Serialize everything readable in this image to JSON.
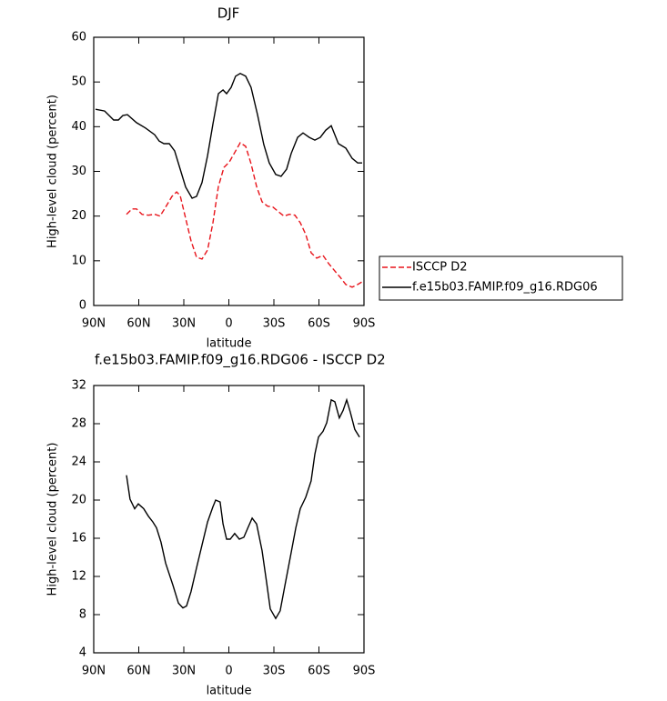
{
  "chart_data": [
    {
      "type": "line",
      "title": "DJF",
      "ylabel": "High-level cloud (percent)",
      "xlabel": "latitude",
      "xlim": [
        90,
        -90
      ],
      "ylim": [
        0,
        60
      ],
      "xticks": [
        {
          "value": 90,
          "label": "90N"
        },
        {
          "value": 60,
          "label": "60N"
        },
        {
          "value": 30,
          "label": "30N"
        },
        0,
        {
          "value": -30,
          "label": "30S"
        },
        {
          "value": -60,
          "label": "60S"
        },
        {
          "value": -90,
          "label": "90S"
        }
      ],
      "yticks": [
        0,
        10,
        20,
        30,
        40,
        50,
        60
      ],
      "legend": "right",
      "series": [
        {
          "name": "ISCCP D2",
          "color": "#e8141b",
          "dash": true,
          "x": [
            68.2,
            64.5,
            61.5,
            57.9,
            53.6,
            49.4,
            45.8,
            42.1,
            37.9,
            34.8,
            32.4,
            28.8,
            25.2,
            21.5,
            17.9,
            14.2,
            10.6,
            7.0,
            3.3,
            -0.3,
            -3.9,
            -7.6,
            -11.2,
            -14.8,
            -18.5,
            -22.1,
            -25.8,
            -29.4,
            -33.0,
            -36.7,
            -40.3,
            -44.0,
            -47.6,
            -51.2,
            -54.8,
            -58.5,
            -62.7,
            -66.4,
            -70.6,
            -74.2,
            -77.9,
            -82.1,
            -85.8,
            -88.8
          ],
          "values": [
            20.4,
            21.6,
            21.6,
            20.4,
            20.2,
            20.4,
            20.0,
            22.0,
            24.4,
            25.4,
            24.6,
            19.5,
            14.5,
            10.8,
            10.4,
            12.4,
            18.5,
            26.6,
            30.9,
            32.1,
            34.2,
            36.4,
            35.6,
            31.7,
            26.6,
            23.2,
            22.2,
            22.0,
            21.0,
            20.0,
            20.4,
            20.2,
            18.5,
            15.9,
            11.8,
            10.6,
            11.2,
            9.4,
            7.7,
            6.3,
            4.7,
            4.1,
            4.7,
            5.3
          ]
        },
        {
          "name": "f.e15b03.FAMIP.f09_g16.RDG06",
          "color": "#000000",
          "dash": false,
          "x": [
            88.8,
            82.7,
            76.7,
            73.6,
            70.6,
            67.6,
            61.5,
            55.5,
            49.4,
            46.4,
            43.3,
            39.7,
            36.1,
            32.4,
            28.8,
            24.5,
            21.5,
            17.9,
            14.2,
            10.6,
            7.0,
            3.9,
            1.5,
            -1.5,
            -4.5,
            -7.6,
            -11.2,
            -14.8,
            -19.1,
            -23.3,
            -26.9,
            -31.2,
            -34.8,
            -38.5,
            -41.5,
            -45.8,
            -49.4,
            -53.6,
            -57.3,
            -60.9,
            -64.5,
            -68.2,
            -73.0,
            -77.9,
            -82.1,
            -85.8,
            -88.8
          ],
          "values": [
            43.9,
            43.5,
            41.5,
            41.5,
            42.5,
            42.7,
            40.9,
            39.7,
            38.2,
            36.8,
            36.2,
            36.2,
            34.6,
            30.5,
            26.5,
            24.0,
            24.4,
            27.5,
            33.5,
            40.6,
            47.4,
            48.2,
            47.4,
            48.8,
            51.3,
            51.9,
            51.3,
            48.8,
            42.7,
            36.0,
            31.9,
            29.3,
            28.9,
            30.5,
            34.0,
            37.6,
            38.6,
            37.6,
            37.0,
            37.6,
            39.2,
            40.2,
            36.2,
            35.2,
            32.9,
            31.9,
            31.9
          ]
        }
      ]
    },
    {
      "type": "line",
      "title": "f.e15b03.FAMIP.f09_g16.RDG06 - ISCCP D2",
      "ylabel": "High-level cloud (percent)",
      "xlabel": "latitude",
      "xlim": [
        90,
        -90
      ],
      "ylim": [
        4,
        32
      ],
      "xticks": [
        {
          "value": 90,
          "label": "90N"
        },
        {
          "value": 60,
          "label": "60N"
        },
        {
          "value": 30,
          "label": "30N"
        },
        0,
        {
          "value": -30,
          "label": "30S"
        },
        {
          "value": -60,
          "label": "60S"
        },
        {
          "value": -90,
          "label": "90S"
        }
      ],
      "yticks": [
        4,
        8,
        12,
        16,
        20,
        24,
        28,
        32
      ],
      "series": [
        {
          "color": "#000000",
          "dash": false,
          "x": [
            68.2,
            65.8,
            62.7,
            60.3,
            56.7,
            53.6,
            50.6,
            48.2,
            45.2,
            42.1,
            37.3,
            33.6,
            30.6,
            28.2,
            25.2,
            21.5,
            17.9,
            14.2,
            10.6,
            8.8,
            5.8,
            3.9,
            1.5,
            -0.9,
            -3.9,
            -7.0,
            -10.0,
            -12.4,
            -15.5,
            -18.5,
            -22.1,
            -25.2,
            -27.6,
            -31.2,
            -34.2,
            -37.3,
            -40.9,
            -44.6,
            -47.6,
            -51.2,
            -54.8,
            -57.3,
            -59.7,
            -62.7,
            -65.2,
            -68.2,
            -70.6,
            -73.6,
            -76.1,
            -78.5,
            -80.9,
            -83.9,
            -87.0
          ],
          "values": [
            22.6,
            20.1,
            19.1,
            19.6,
            19.1,
            18.3,
            17.7,
            17.1,
            15.6,
            13.4,
            11.1,
            9.2,
            8.7,
            8.9,
            10.4,
            12.9,
            15.3,
            17.7,
            19.3,
            20.0,
            19.8,
            17.5,
            15.9,
            15.9,
            16.5,
            15.9,
            16.1,
            17.0,
            18.1,
            17.5,
            14.7,
            11.3,
            8.6,
            7.6,
            8.4,
            11.0,
            14.0,
            17.1,
            19.1,
            20.3,
            22.0,
            24.8,
            26.6,
            27.2,
            28.1,
            30.5,
            30.3,
            28.6,
            29.4,
            30.5,
            29.2,
            27.4,
            26.6
          ]
        }
      ]
    }
  ]
}
